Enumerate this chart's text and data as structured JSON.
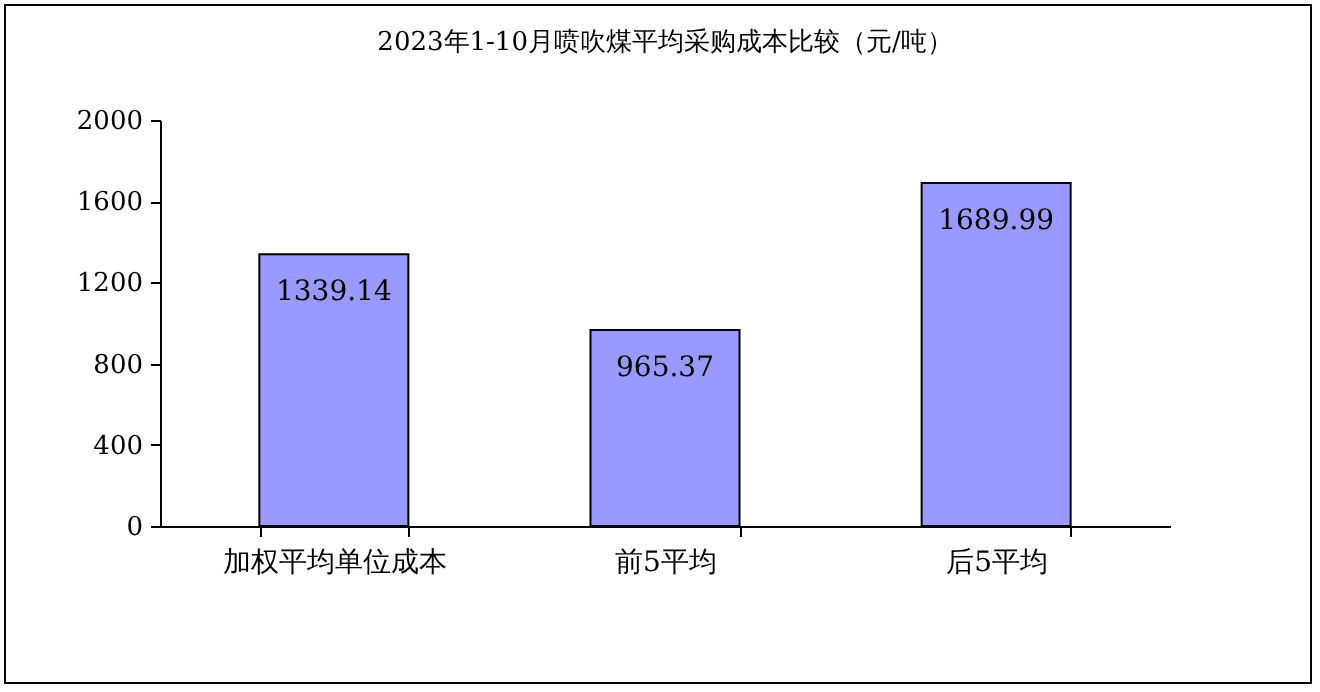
{
  "chart_data": {
    "type": "bar",
    "title": "2023年1-10月喷吹煤平均采购成本比较（元/吨）",
    "categories": [
      "加权平均单位成本",
      "前5平均",
      "后5平均"
    ],
    "values": [
      1339.14,
      965.37,
      1689.99
    ],
    "color": "#9999ff",
    "ylim": [
      0,
      2000
    ],
    "yticks": [
      0,
      400,
      800,
      1200,
      1600,
      2000
    ],
    "data_labels": true,
    "grid": false
  }
}
